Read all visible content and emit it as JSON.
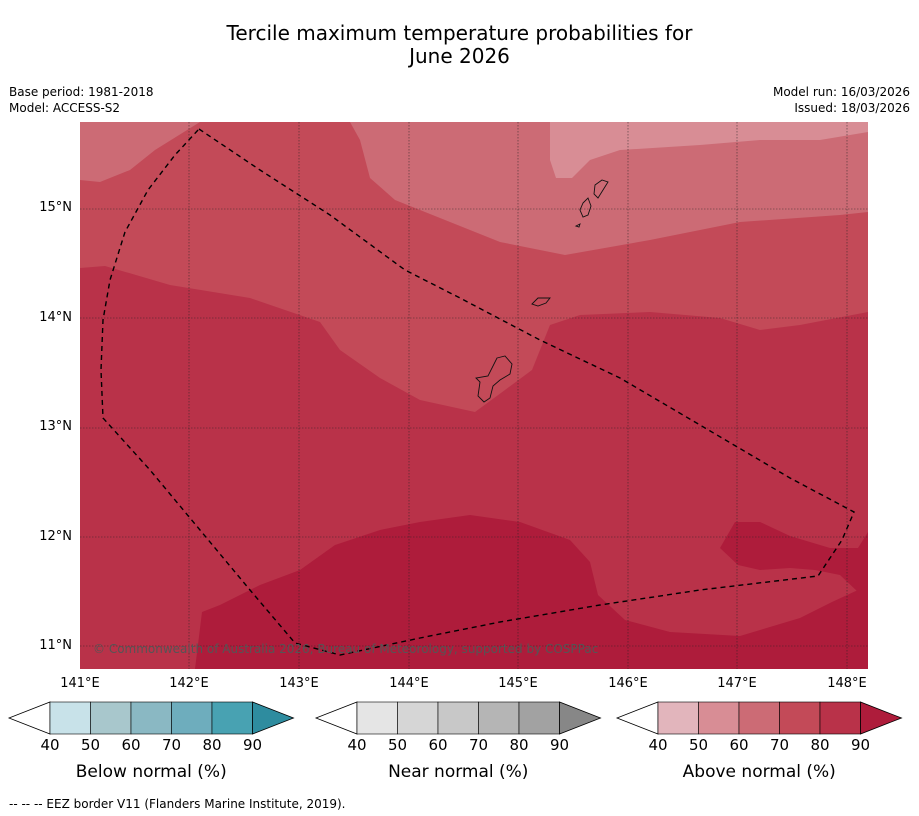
{
  "title_line1": "Tercile maximum temperature probabilities for",
  "title_line2": "June 2026",
  "meta": {
    "base_period": "Base period: 1981-2018",
    "model": "Model: ACCESS-S2",
    "model_run": "Model run: 16/03/2026",
    "issued": "Issued: 18/03/2026"
  },
  "map": {
    "lat_labels": [
      "15°N",
      "14°N",
      "13°N",
      "12°N",
      "11°N"
    ],
    "lon_labels": [
      "141°E",
      "142°E",
      "143°E",
      "144°E",
      "145°E",
      "146°E",
      "147°E",
      "148°E"
    ],
    "copyright": "© Commonwealth of Australia 2026, Bureau of Meteorology, supported by COSPPac",
    "colors": {
      "above_50_60": "#d88d95",
      "above_60_70": "#cc6b75",
      "above_70_80": "#c34a58",
      "above_80_90": "#b93249",
      "above_90": "#ae1c3b"
    }
  },
  "colorbars": [
    {
      "name": "below",
      "title": "Below normal (%)",
      "ticks": [
        "40",
        "50",
        "60",
        "70",
        "80",
        "90"
      ],
      "colors": [
        "#ffffff",
        "#c8e2e9",
        "#a8c7cc",
        "#8ab8c3",
        "#6eadbd",
        "#48a2b2",
        "#2e8c9f"
      ]
    },
    {
      "name": "near",
      "title": "Near normal (%)",
      "ticks": [
        "40",
        "50",
        "60",
        "70",
        "80",
        "90"
      ],
      "colors": [
        "#ffffff",
        "#e5e5e5",
        "#d6d6d6",
        "#c8c8c8",
        "#b5b5b5",
        "#a2a2a2",
        "#878787"
      ]
    },
    {
      "name": "above",
      "title": "Above normal (%)",
      "ticks": [
        "40",
        "50",
        "60",
        "70",
        "80",
        "90"
      ],
      "colors": [
        "#ffffff",
        "#e2b5bc",
        "#d88d95",
        "#cc6b75",
        "#c34a58",
        "#b93249",
        "#ae1c3b"
      ]
    }
  ],
  "footnote": "--  --  -- EEZ border V11 (Flanders Marine Institute, 2019)."
}
